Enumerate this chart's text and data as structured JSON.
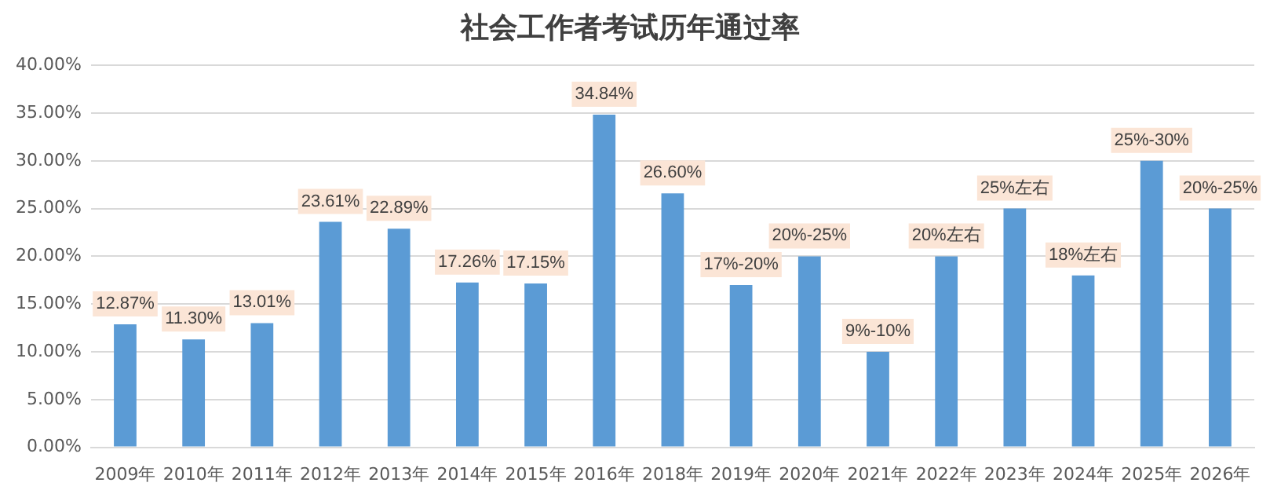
{
  "chart_data": {
    "type": "bar",
    "title": "社会工作者考试历年通过率",
    "categories": [
      "2009年",
      "2010年",
      "2011年",
      "2012年",
      "2013年",
      "2014年",
      "2015年",
      "2016年",
      "2018年",
      "2019年",
      "2020年",
      "2021年",
      "2022年",
      "2023年",
      "2024年",
      "2025年",
      "2026年"
    ],
    "values": [
      12.87,
      11.3,
      13.01,
      23.61,
      22.89,
      17.26,
      17.15,
      34.84,
      26.6,
      17,
      20,
      10,
      20,
      25,
      18,
      30,
      25
    ],
    "value_labels": [
      "12.87%",
      "11.30%",
      "13.01%",
      "23.61%",
      "22.89%",
      "17.26%",
      "17.15%",
      "34.84%",
      "26.60%",
      null,
      null,
      null,
      null,
      null,
      null,
      null,
      null
    ],
    "annotations": [
      {
        "text": "17%-20%",
        "x": "2019年",
        "y": 17
      },
      {
        "text": "20%-25%",
        "x": "2020年",
        "y": 20
      },
      {
        "text": "9%-10%",
        "x": "2021年",
        "y": 10
      },
      {
        "text": "20%左右",
        "x": "2022年",
        "y": 20
      },
      {
        "text": "25%左右",
        "x": "2023年",
        "y": 25
      },
      {
        "text": "18%左右",
        "x": "2024年",
        "y": 18
      },
      {
        "text": "25%-30%",
        "x": "2025年",
        "y": 30
      },
      {
        "text": "20%-25%",
        "x": "2026年",
        "y": 25
      }
    ],
    "color": "#5b9bd5",
    "ylim": [
      0,
      40
    ],
    "yticks": [
      {
        "value": 0,
        "label": "0.00%"
      },
      {
        "value": 5,
        "label": "5.00%"
      },
      {
        "value": 10,
        "label": "10.00%"
      },
      {
        "value": 15,
        "label": "15.00%"
      },
      {
        "value": 20,
        "label": "20.00%"
      },
      {
        "value": 25,
        "label": "25.00%"
      },
      {
        "value": 30,
        "label": "30.00%"
      },
      {
        "value": 35,
        "label": "35.00%"
      },
      {
        "value": 40,
        "label": "40.00%"
      }
    ],
    "grid": "y"
  }
}
